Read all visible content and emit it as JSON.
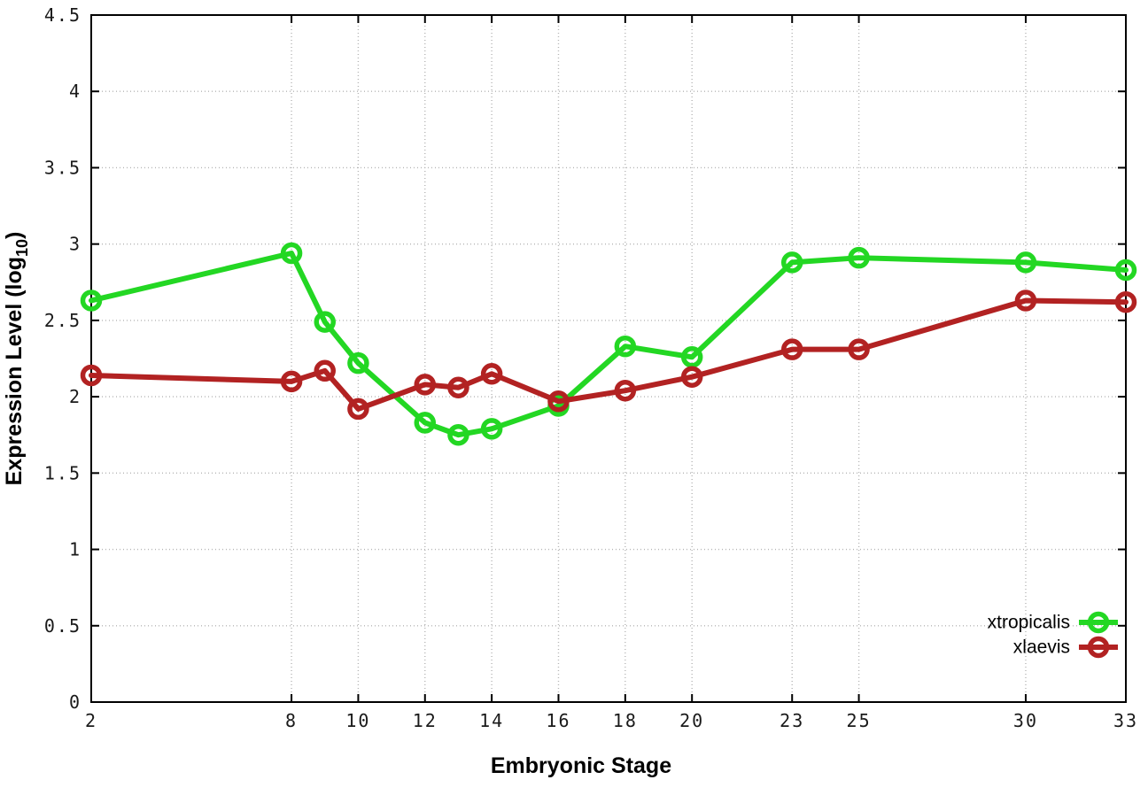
{
  "chart_data": {
    "type": "line",
    "title": "",
    "xlabel": "Embryonic Stage",
    "ylabel": "Expression Level (log10)",
    "ylabel_parts": {
      "pre": "Expression Level (log",
      "sub": "10",
      "post": ")"
    },
    "xlim": [
      2,
      33
    ],
    "ylim": [
      0,
      4.5
    ],
    "grid": true,
    "legend_position": "inside-bottom-right",
    "x_ticks": {
      "values": [
        2,
        8,
        10,
        12,
        14,
        16,
        18,
        20,
        23,
        25,
        30,
        33
      ],
      "labels": [
        "2",
        "8",
        "10",
        "12",
        "14",
        "16",
        "18",
        "20",
        "23",
        "25",
        "30",
        "33"
      ]
    },
    "y_ticks": {
      "values": [
        0,
        0.5,
        1,
        1.5,
        2,
        2.5,
        3,
        3.5,
        4,
        4.5
      ],
      "labels": [
        "0",
        "0.5",
        "1",
        "1.5",
        "2",
        "2.5",
        "3",
        "3.5",
        "4",
        "4.5"
      ]
    },
    "series": [
      {
        "name": "xtropicalis",
        "color": "#23d723",
        "marker": "open-circle",
        "x": [
          2,
          8,
          9,
          10,
          12,
          13,
          14,
          16,
          18,
          20,
          23,
          25,
          30,
          33
        ],
        "values": [
          2.63,
          2.94,
          2.49,
          2.22,
          1.83,
          1.75,
          1.79,
          1.94,
          2.33,
          2.26,
          2.88,
          2.91,
          2.88,
          2.83
        ]
      },
      {
        "name": "xlaevis",
        "color": "#b22222",
        "marker": "open-circle",
        "x": [
          2,
          8,
          9,
          10,
          12,
          13,
          14,
          16,
          18,
          20,
          23,
          25,
          30,
          33
        ],
        "values": [
          2.14,
          2.1,
          2.17,
          1.92,
          2.08,
          2.06,
          2.15,
          1.97,
          2.04,
          2.13,
          2.31,
          2.31,
          2.63,
          2.62
        ]
      }
    ],
    "colors": {
      "background": "#ffffff",
      "axis": "#000000",
      "grid": "#b5b5b5",
      "tick_text": "#1a1a1a"
    }
  }
}
